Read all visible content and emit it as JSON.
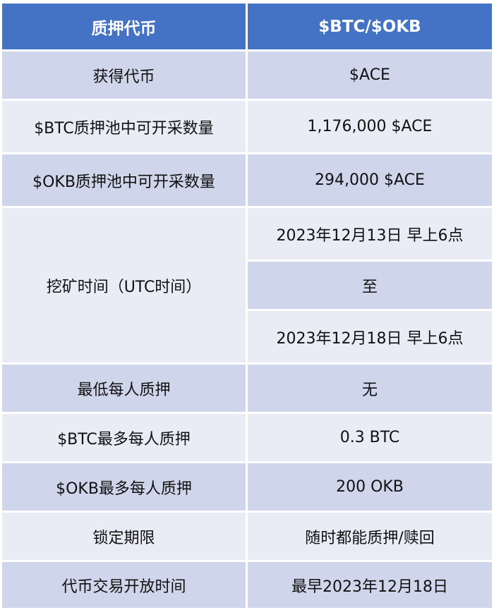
{
  "header": {
    "col1": "质押代币",
    "col2": "$BTC/$OKB"
  },
  "rows": [
    {
      "label": "获得代币",
      "value": "$ACE"
    },
    {
      "label": "$BTC质押池中可开采数量",
      "value": "1,176,000 $ACE"
    },
    {
      "label": "$OKB质押池中可开采数量",
      "value": "294,000 $ACE"
    },
    {
      "label": "挖矿时间（UTC时间）",
      "values": [
        "2023年12月13日 早上6点",
        "至",
        "2023年12月18日 早上6点"
      ]
    },
    {
      "label": "最低每人质押",
      "value": "无"
    },
    {
      "label": "$BTC最多每人质押",
      "value": "0.3 BTC"
    },
    {
      "label": "$OKB最多每人质押",
      "value": "200 OKB"
    },
    {
      "label": "锁定期限",
      "value": "随时都能质押/赎回"
    },
    {
      "label": "代币交易开放时间",
      "value": "最早2023年12月18日"
    }
  ],
  "colors": {
    "header": "#4472c4",
    "band_dark": "#cfd5ea",
    "band_light": "#e9ebf5"
  }
}
